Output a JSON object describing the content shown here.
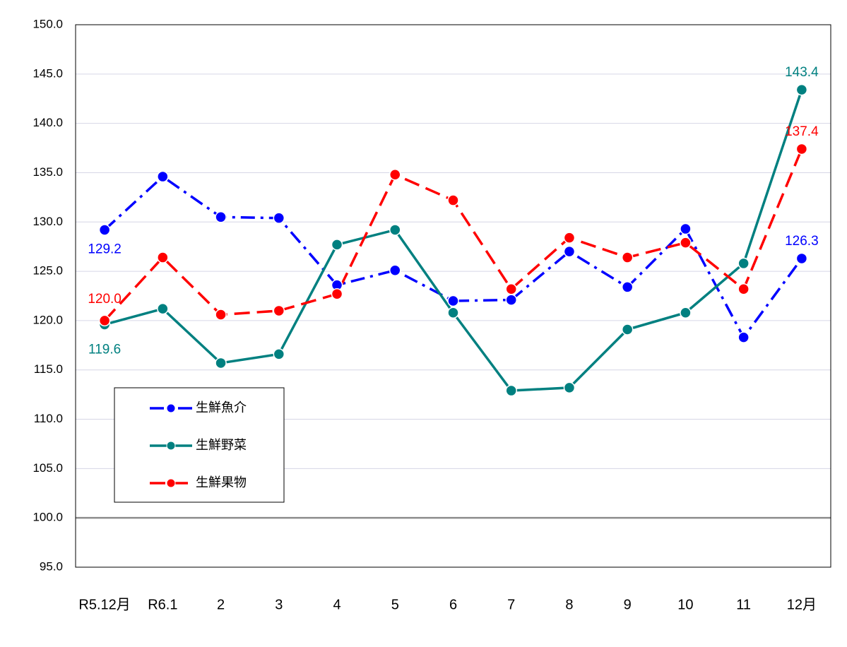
{
  "chart_data": {
    "type": "line",
    "categories": [
      "R5.12月",
      "R6.1",
      "2",
      "3",
      "4",
      "5",
      "6",
      "7",
      "8",
      "9",
      "10",
      "11",
      "12月"
    ],
    "series": [
      {
        "name": "生鮮魚介",
        "color": "#0000ff",
        "dash": "dashdot",
        "values": [
          129.2,
          134.6,
          130.5,
          130.4,
          123.6,
          125.1,
          122.0,
          122.1,
          127.0,
          123.4,
          129.3,
          118.3,
          126.3
        ],
        "value_labels": [
          "129.2",
          null,
          null,
          null,
          null,
          null,
          null,
          null,
          null,
          null,
          null,
          null,
          "126.3"
        ]
      },
      {
        "name": "生鮮野菜",
        "color": "#008080",
        "dash": "solid",
        "values": [
          119.6,
          121.2,
          115.7,
          116.6,
          127.7,
          129.2,
          120.8,
          112.9,
          113.2,
          119.1,
          120.8,
          125.8,
          143.4
        ],
        "value_labels": [
          "119.6",
          null,
          null,
          null,
          null,
          null,
          null,
          null,
          null,
          null,
          null,
          null,
          "143.4"
        ]
      },
      {
        "name": "生鮮果物",
        "color": "#ff0000",
        "dash": "dashed",
        "values": [
          120.0,
          126.4,
          120.6,
          121.0,
          122.7,
          134.8,
          132.2,
          123.2,
          128.4,
          126.4,
          127.9,
          123.2,
          137.4
        ],
        "value_labels": [
          "120.0",
          null,
          null,
          null,
          null,
          null,
          null,
          null,
          null,
          null,
          null,
          null,
          "137.4"
        ]
      }
    ],
    "ylim": [
      95,
      150
    ],
    "yticks": [
      {
        "value": 95,
        "label": "95.0"
      },
      {
        "value": 100,
        "label": "100.0"
      },
      {
        "value": 105,
        "label": "105.0"
      },
      {
        "value": 110,
        "label": "110.0"
      },
      {
        "value": 115,
        "label": "115.0"
      },
      {
        "value": 120,
        "label": "120.0"
      },
      {
        "value": 125,
        "label": "125.0"
      },
      {
        "value": 130,
        "label": "130.0"
      },
      {
        "value": 135,
        "label": "135.0"
      },
      {
        "value": 140,
        "label": "140.0"
      },
      {
        "value": 145,
        "label": "145.0"
      },
      {
        "value": 150,
        "label": "150.0"
      }
    ],
    "grid": true,
    "baseline": 100,
    "legend": "lower-left"
  }
}
